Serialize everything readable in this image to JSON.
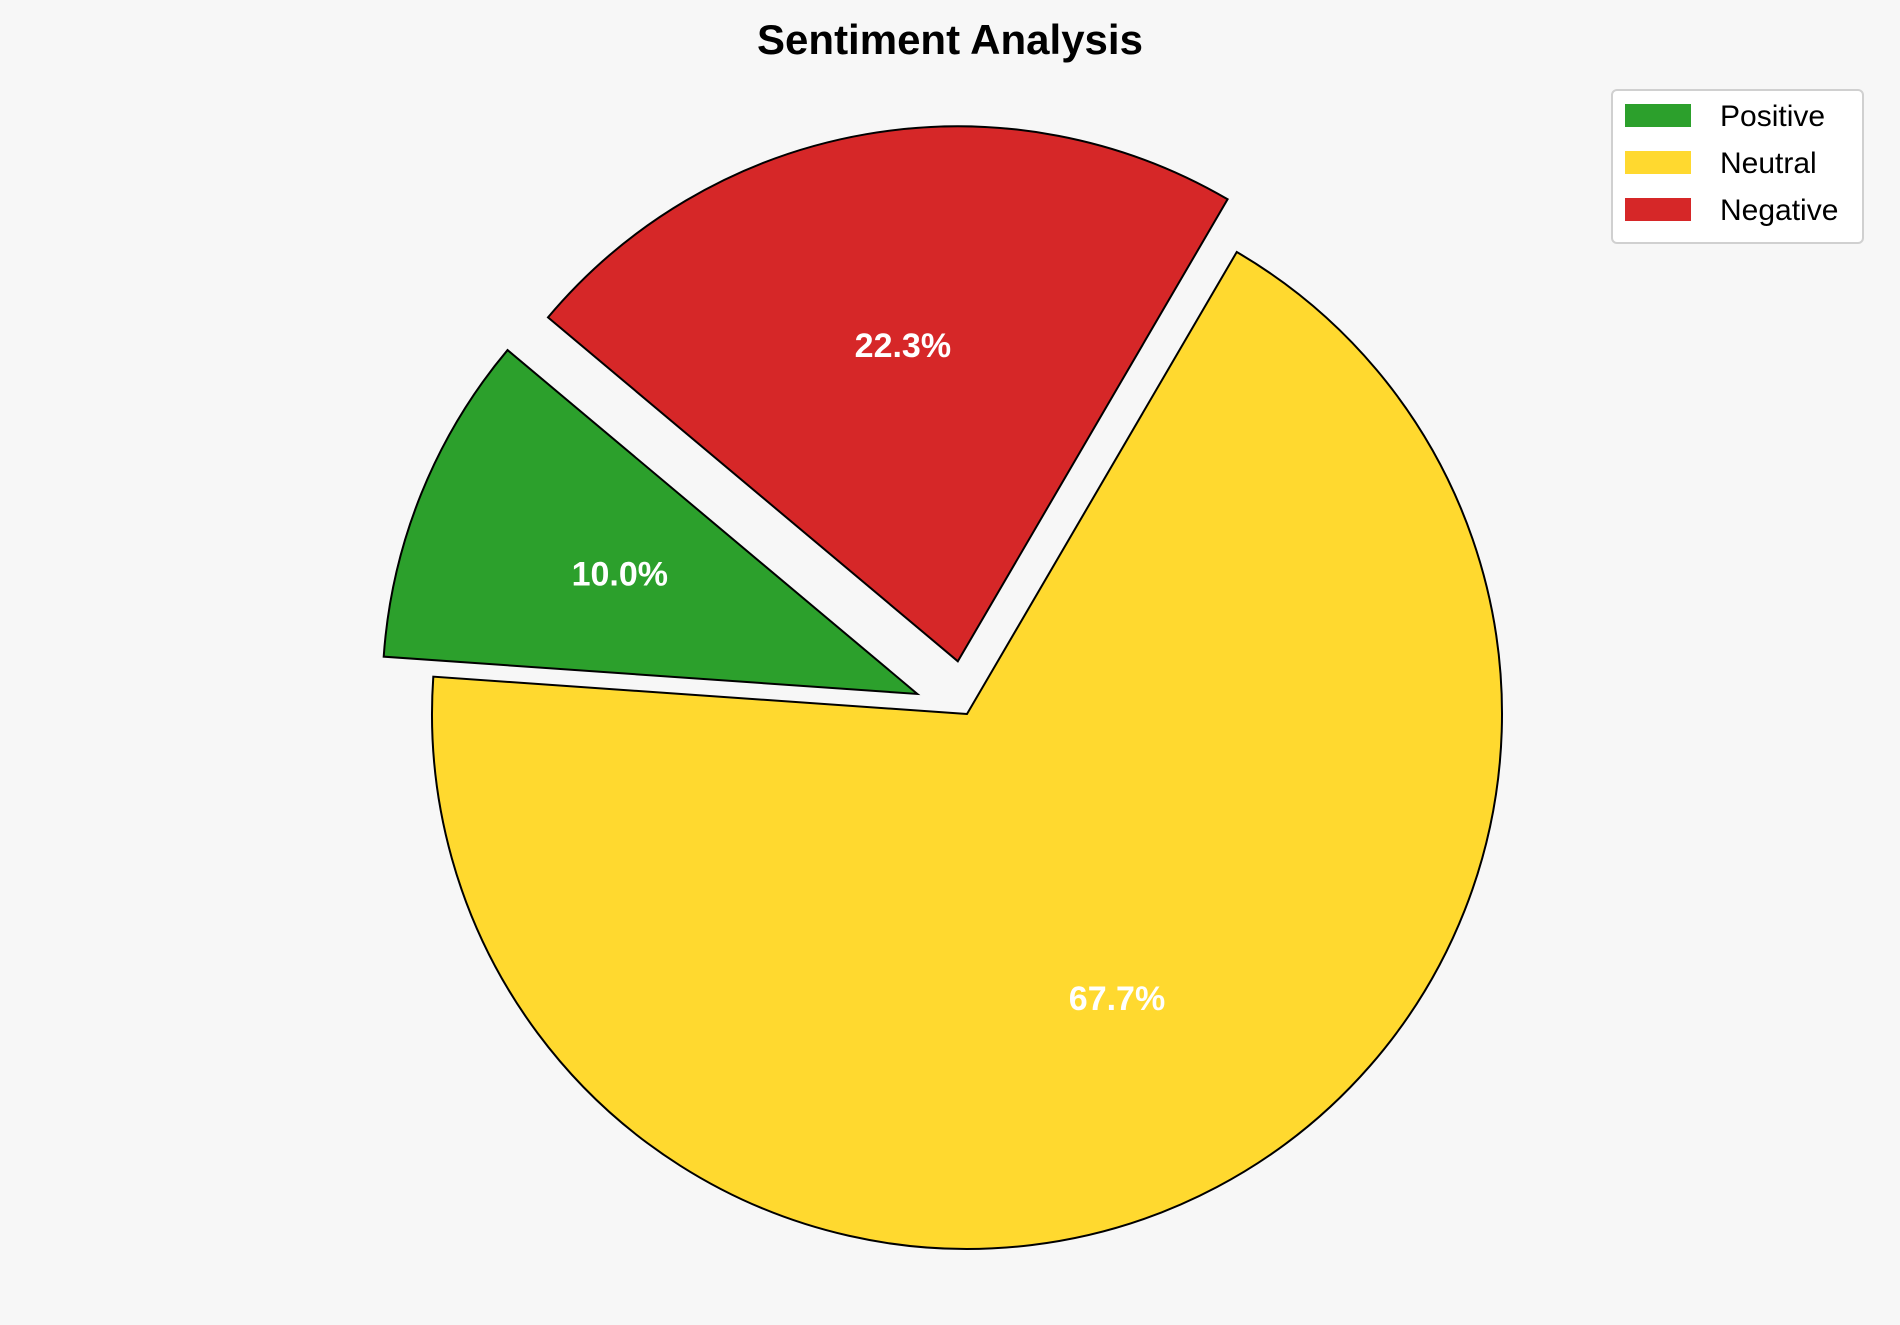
{
  "chart_data": {
    "type": "pie",
    "title": "Sentiment Analysis",
    "categories": [
      "Positive",
      "Neutral",
      "Negative"
    ],
    "values": [
      10.0,
      67.7,
      22.3
    ],
    "labels": [
      "10.0%",
      "67.7%",
      "22.3%"
    ],
    "colors": [
      "#2ca02c",
      "#ffd92f",
      "#d62728"
    ],
    "exploded": [
      true,
      false,
      true
    ],
    "start_angle_deg": 140,
    "counterclockwise": true,
    "legend": {
      "placement": "top-right",
      "entries": [
        "Positive",
        "Neutral",
        "Negative"
      ]
    }
  }
}
